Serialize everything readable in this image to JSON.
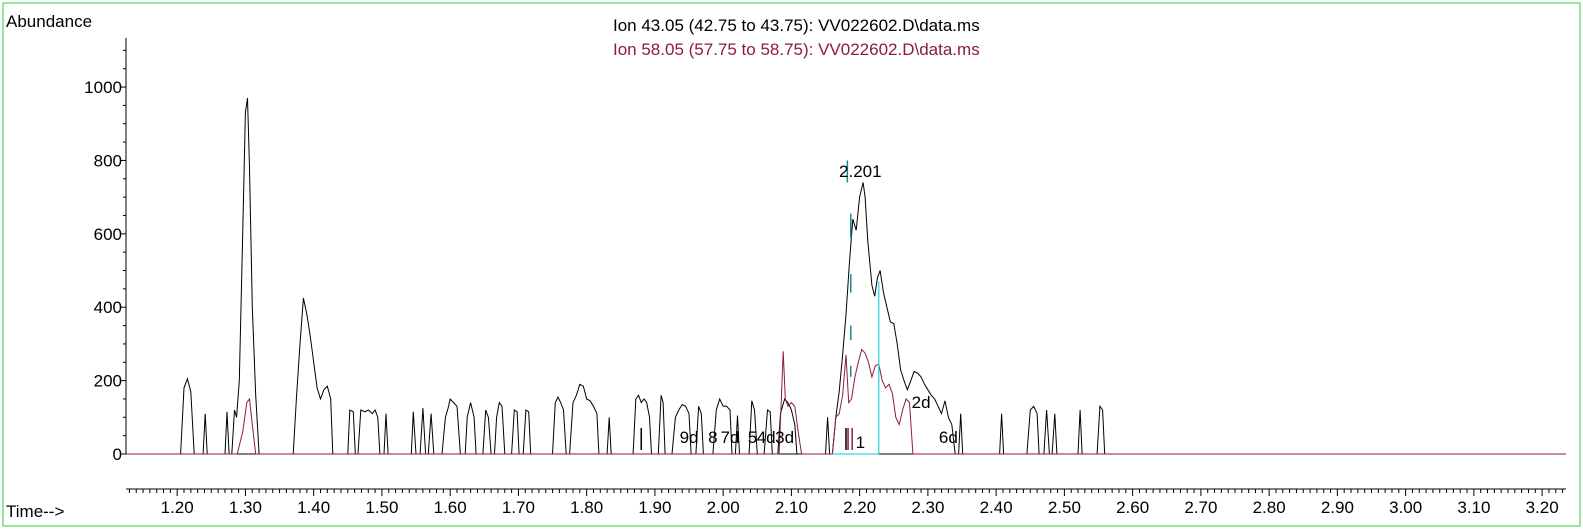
{
  "chart_data": {
    "type": "line",
    "ylabel": "Abundance",
    "xlabel": "Time-->",
    "xlim": [
      1.125,
      3.235
    ],
    "ylim": [
      0,
      1150
    ],
    "x_ticks": [
      "1.20",
      "1.30",
      "1.40",
      "1.50",
      "1.60",
      "1.70",
      "1.80",
      "1.90",
      "2.00",
      "2.10",
      "2.20",
      "2.30",
      "2.40",
      "2.50",
      "2.60",
      "2.70",
      "2.80",
      "2.90",
      "3.00",
      "3.10",
      "3.20"
    ],
    "y_ticks": [
      "0",
      "200",
      "400",
      "600",
      "800",
      "1000"
    ],
    "legend": [
      {
        "text": "Ion  43.05 (42.75 to 43.75): VV022602.D\\data.ms",
        "color": "#000000"
      },
      {
        "text": "Ion  58.05 (57.75 to 58.75): VV022602.D\\data.ms",
        "color": "#8b1a4a"
      }
    ],
    "series": [
      {
        "color": "#000000",
        "points": [
          [
            1.125,
            0
          ],
          [
            1.205,
            0
          ],
          [
            1.21,
            180
          ],
          [
            1.215,
            205
          ],
          [
            1.22,
            170
          ],
          [
            1.225,
            0
          ],
          [
            1.238,
            0
          ],
          [
            1.241,
            110
          ],
          [
            1.244,
            0
          ],
          [
            1.27,
            0
          ],
          [
            1.273,
            115
          ],
          [
            1.276,
            0
          ],
          [
            1.28,
            0
          ],
          [
            1.284,
            120
          ],
          [
            1.287,
            100
          ],
          [
            1.291,
            200
          ],
          [
            1.296,
            600
          ],
          [
            1.3,
            930
          ],
          [
            1.303,
            970
          ],
          [
            1.306,
            780
          ],
          [
            1.31,
            400
          ],
          [
            1.315,
            160
          ],
          [
            1.32,
            0
          ],
          [
            1.37,
            0
          ],
          [
            1.375,
            160
          ],
          [
            1.38,
            300
          ],
          [
            1.385,
            425
          ],
          [
            1.39,
            380
          ],
          [
            1.395,
            320
          ],
          [
            1.4,
            250
          ],
          [
            1.405,
            180
          ],
          [
            1.41,
            150
          ],
          [
            1.415,
            175
          ],
          [
            1.42,
            185
          ],
          [
            1.425,
            150
          ],
          [
            1.428,
            0
          ],
          [
            1.45,
            0
          ],
          [
            1.453,
            120
          ],
          [
            1.458,
            115
          ],
          [
            1.461,
            0
          ],
          [
            1.465,
            0
          ],
          [
            1.469,
            120
          ],
          [
            1.475,
            115
          ],
          [
            1.48,
            120
          ],
          [
            1.486,
            110
          ],
          [
            1.49,
            120
          ],
          [
            1.494,
            100
          ],
          [
            1.497,
            0
          ],
          [
            1.503,
            0
          ],
          [
            1.506,
            110
          ],
          [
            1.509,
            0
          ],
          [
            1.543,
            0
          ],
          [
            1.546,
            115
          ],
          [
            1.55,
            0
          ],
          [
            1.556,
            0
          ],
          [
            1.56,
            125
          ],
          [
            1.564,
            0
          ],
          [
            1.568,
            0
          ],
          [
            1.572,
            110
          ],
          [
            1.576,
            0
          ],
          [
            1.588,
            0
          ],
          [
            1.593,
            100
          ],
          [
            1.597,
            125
          ],
          [
            1.6,
            150
          ],
          [
            1.605,
            140
          ],
          [
            1.61,
            130
          ],
          [
            1.615,
            0
          ],
          [
            1.622,
            0
          ],
          [
            1.625,
            100
          ],
          [
            1.63,
            140
          ],
          [
            1.635,
            100
          ],
          [
            1.638,
            0
          ],
          [
            1.648,
            0
          ],
          [
            1.652,
            120
          ],
          [
            1.656,
            100
          ],
          [
            1.66,
            0
          ],
          [
            1.665,
            0
          ],
          [
            1.668,
            100
          ],
          [
            1.672,
            140
          ],
          [
            1.676,
            130
          ],
          [
            1.68,
            0
          ],
          [
            1.69,
            0
          ],
          [
            1.694,
            120
          ],
          [
            1.698,
            115
          ],
          [
            1.701,
            0
          ],
          [
            1.707,
            0
          ],
          [
            1.711,
            120
          ],
          [
            1.715,
            115
          ],
          [
            1.718,
            0
          ],
          [
            1.75,
            0
          ],
          [
            1.754,
            140
          ],
          [
            1.758,
            155
          ],
          [
            1.762,
            140
          ],
          [
            1.766,
            120
          ],
          [
            1.77,
            0
          ],
          [
            1.775,
            0
          ],
          [
            1.78,
            140
          ],
          [
            1.785,
            160
          ],
          [
            1.79,
            190
          ],
          [
            1.795,
            185
          ],
          [
            1.8,
            150
          ],
          [
            1.805,
            145
          ],
          [
            1.81,
            130
          ],
          [
            1.815,
            110
          ],
          [
            1.818,
            0
          ],
          [
            1.83,
            0
          ],
          [
            1.833,
            100
          ],
          [
            1.836,
            0
          ],
          [
            1.868,
            0
          ],
          [
            1.872,
            150
          ],
          [
            1.876,
            160
          ],
          [
            1.88,
            140
          ],
          [
            1.884,
            150
          ],
          [
            1.888,
            140
          ],
          [
            1.892,
            100
          ],
          [
            1.895,
            0
          ],
          [
            1.905,
            0
          ],
          [
            1.909,
            160
          ],
          [
            1.912,
            140
          ],
          [
            1.915,
            0
          ],
          [
            1.925,
            0
          ],
          [
            1.93,
            100
          ],
          [
            1.935,
            120
          ],
          [
            1.94,
            135
          ],
          [
            1.945,
            130
          ],
          [
            1.95,
            110
          ],
          [
            1.953,
            0
          ],
          [
            1.96,
            0
          ],
          [
            1.964,
            130
          ],
          [
            1.968,
            110
          ],
          [
            1.971,
            0
          ],
          [
            1.985,
            0
          ],
          [
            1.99,
            120
          ],
          [
            1.995,
            150
          ],
          [
            2.0,
            130
          ],
          [
            2.005,
            130
          ],
          [
            2.01,
            120
          ],
          [
            2.013,
            0
          ],
          [
            2.018,
            0
          ],
          [
            2.021,
            105
          ],
          [
            2.024,
            0
          ],
          [
            2.038,
            0
          ],
          [
            2.042,
            145
          ],
          [
            2.046,
            120
          ],
          [
            2.05,
            0
          ],
          [
            2.06,
            0
          ],
          [
            2.065,
            120
          ],
          [
            2.069,
            115
          ],
          [
            2.072,
            0
          ],
          [
            2.08,
            0
          ],
          [
            2.084,
            110
          ],
          [
            2.09,
            150
          ],
          [
            2.095,
            140
          ],
          [
            2.1,
            120
          ],
          [
            2.105,
            80
          ],
          [
            2.108,
            0
          ],
          [
            2.15,
            0
          ],
          [
            2.153,
            100
          ],
          [
            2.156,
            0
          ],
          [
            2.16,
            0
          ],
          [
            2.165,
            100
          ],
          [
            2.17,
            170
          ],
          [
            2.175,
            270
          ],
          [
            2.18,
            380
          ],
          [
            2.185,
            520
          ],
          [
            2.19,
            640
          ],
          [
            2.195,
            610
          ],
          [
            2.2,
            700
          ],
          [
            2.205,
            740
          ],
          [
            2.208,
            700
          ],
          [
            2.212,
            580
          ],
          [
            2.218,
            460
          ],
          [
            2.222,
            430
          ],
          [
            2.226,
            480
          ],
          [
            2.23,
            500
          ],
          [
            2.235,
            440
          ],
          [
            2.24,
            400
          ],
          [
            2.245,
            360
          ],
          [
            2.25,
            355
          ],
          [
            2.255,
            300
          ],
          [
            2.26,
            230
          ],
          [
            2.265,
            200
          ],
          [
            2.27,
            175
          ],
          [
            2.275,
            200
          ],
          [
            2.28,
            225
          ],
          [
            2.285,
            220
          ],
          [
            2.29,
            210
          ],
          [
            2.295,
            190
          ],
          [
            2.3,
            175
          ],
          [
            2.305,
            160
          ],
          [
            2.31,
            150
          ],
          [
            2.315,
            130
          ],
          [
            2.32,
            110
          ],
          [
            2.325,
            145
          ],
          [
            2.33,
            100
          ],
          [
            2.335,
            80
          ],
          [
            2.34,
            0
          ],
          [
            2.345,
            0
          ],
          [
            2.348,
            110
          ],
          [
            2.351,
            0
          ],
          [
            2.405,
            0
          ],
          [
            2.408,
            110
          ],
          [
            2.411,
            0
          ],
          [
            2.445,
            0
          ],
          [
            2.45,
            120
          ],
          [
            2.455,
            130
          ],
          [
            2.46,
            110
          ],
          [
            2.463,
            0
          ],
          [
            2.47,
            0
          ],
          [
            2.474,
            120
          ],
          [
            2.478,
            0
          ],
          [
            2.482,
            0
          ],
          [
            2.486,
            110
          ],
          [
            2.489,
            0
          ],
          [
            2.52,
            0
          ],
          [
            2.523,
            120
          ],
          [
            2.526,
            0
          ],
          [
            2.548,
            0
          ],
          [
            2.552,
            130
          ],
          [
            2.556,
            120
          ],
          [
            2.559,
            0
          ],
          [
            3.235,
            0
          ]
        ]
      },
      {
        "color": "#8b1a4a",
        "points": [
          [
            1.125,
            0
          ],
          [
            1.288,
            0
          ],
          [
            1.296,
            60
          ],
          [
            1.302,
            140
          ],
          [
            1.306,
            150
          ],
          [
            1.31,
            80
          ],
          [
            1.315,
            0
          ],
          [
            2.082,
            0
          ],
          [
            2.085,
            140
          ],
          [
            2.088,
            280
          ],
          [
            2.091,
            150
          ],
          [
            2.095,
            130
          ],
          [
            2.1,
            140
          ],
          [
            2.105,
            130
          ],
          [
            2.11,
            60
          ],
          [
            2.115,
            0
          ],
          [
            2.16,
            0
          ],
          [
            2.165,
            100
          ],
          [
            2.17,
            110
          ],
          [
            2.175,
            160
          ],
          [
            2.18,
            270
          ],
          [
            2.184,
            140
          ],
          [
            2.188,
            150
          ],
          [
            2.193,
            210
          ],
          [
            2.198,
            250
          ],
          [
            2.203,
            285
          ],
          [
            2.208,
            275
          ],
          [
            2.213,
            250
          ],
          [
            2.218,
            210
          ],
          [
            2.223,
            240
          ],
          [
            2.228,
            245
          ],
          [
            2.233,
            200
          ],
          [
            2.238,
            180
          ],
          [
            2.243,
            190
          ],
          [
            2.248,
            165
          ],
          [
            2.253,
            100
          ],
          [
            2.258,
            80
          ],
          [
            2.263,
            120
          ],
          [
            2.268,
            150
          ],
          [
            2.273,
            140
          ],
          [
            2.278,
            0
          ],
          [
            3.235,
            0
          ]
        ]
      }
    ],
    "peak_label": {
      "text": "2.201",
      "x": 2.201,
      "y": 755
    },
    "integration": {
      "label": "1",
      "label_x": 2.201,
      "baseline_start": 2.16,
      "baseline_end": 2.228,
      "end_value": 470
    },
    "markers_ion43": [
      1.88,
      2.18
    ],
    "markers_ion58": [
      2.183,
      2.189
    ],
    "dashed_markers": [
      [
        2.187,
        590,
        655
      ],
      [
        2.187,
        440,
        490
      ],
      [
        2.187,
        310,
        350
      ],
      [
        2.187,
        210,
        240
      ],
      [
        2.182,
        740,
        800
      ]
    ],
    "compound_labels": [
      {
        "text": "9d",
        "x": 1.95,
        "y": 30
      },
      {
        "text": "8",
        "x": 1.985,
        "y": 30
      },
      {
        "text": "7d",
        "x": 2.01,
        "y": 30
      },
      {
        "text": "5",
        "x": 2.043,
        "y": 30
      },
      {
        "text": "4d",
        "x": 2.063,
        "y": 30
      },
      {
        "text": "3d",
        "x": 2.09,
        "y": 30
      },
      {
        "text": "2d",
        "x": 2.29,
        "y": 125
      },
      {
        "text": "6d",
        "x": 2.33,
        "y": 30
      }
    ]
  }
}
